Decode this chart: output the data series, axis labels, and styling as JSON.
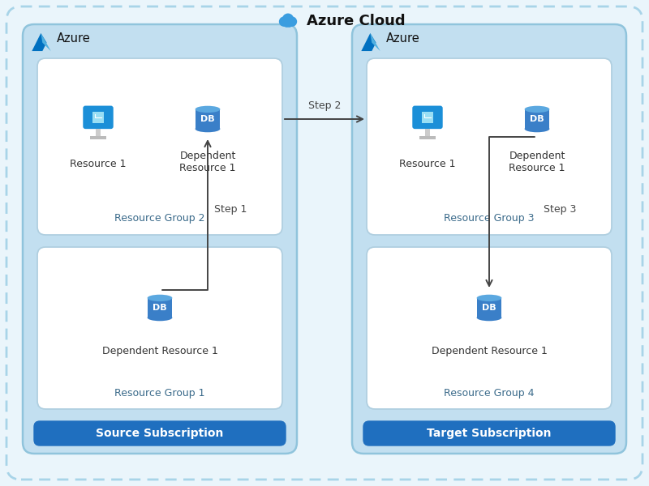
{
  "title": "Azure Cloud",
  "bg_outer": "#eaf5fb",
  "bg_outer_border": "#a8d4e8",
  "left_sub_bg": "#c2dff0",
  "right_sub_bg": "#c2dff0",
  "sub_border": "#90c4dc",
  "rg_bg": "#ffffff",
  "rg_border": "#b0cfe0",
  "sub_btn_color": "#1f6fbf",
  "left_label": "Azure",
  "right_label": "Azure",
  "rg1_label": "Resource Group 1",
  "rg2_label": "Resource Group 2",
  "rg3_label": "Resource Group 3",
  "rg4_label": "Resource Group 4",
  "left_sub_btn": "Source Subscription",
  "right_sub_btn": "Target Subscription",
  "step1": "Step 1",
  "step2": "Step 2",
  "step3": "Step 3",
  "resource1_label": "Resource 1",
  "dep_res1_label": "Dependent\nResource 1",
  "dep_res_single": "Dependent Resource 1",
  "db_color_top": "#5ba8e0",
  "db_color_body": "#3a7fc8",
  "db_text": "DB",
  "monitor_color": "#1b8fd8",
  "text_color": "#333333",
  "rg_text_color": "#3a6a8a",
  "step_text_color": "#444444",
  "azure_logo_color": "#0072C6",
  "cloud_color": "#3a9de0"
}
